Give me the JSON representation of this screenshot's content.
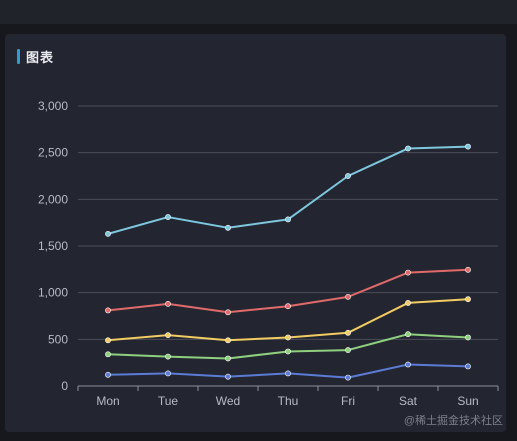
{
  "card": {
    "title": "图表"
  },
  "watermark": "@稀土掘金技术社区",
  "chart_data": {
    "type": "line",
    "categories": [
      "Mon",
      "Tue",
      "Wed",
      "Thu",
      "Fri",
      "Sat",
      "Sun"
    ],
    "ylim": [
      0,
      3000
    ],
    "yticks": [
      0,
      500,
      1000,
      1500,
      2000,
      2500,
      3000
    ],
    "ytick_labels": [
      "0",
      "500",
      "1,000",
      "1,500",
      "2,000",
      "2,500",
      "3,000"
    ],
    "grid": true,
    "legend": "none",
    "series": [
      {
        "color": "#7ec7df",
        "values": [
          1630,
          1810,
          1695,
          1785,
          2250,
          2545,
          2565
        ]
      },
      {
        "color": "#e06a6a",
        "values": [
          810,
          880,
          790,
          855,
          955,
          1215,
          1245
        ]
      },
      {
        "color": "#f2cc63",
        "values": [
          490,
          545,
          490,
          520,
          570,
          890,
          930
        ]
      },
      {
        "color": "#8fd07f",
        "values": [
          340,
          315,
          295,
          370,
          385,
          555,
          520
        ]
      },
      {
        "color": "#5b7bd5",
        "values": [
          120,
          135,
          100,
          135,
          90,
          230,
          210
        ]
      }
    ]
  }
}
